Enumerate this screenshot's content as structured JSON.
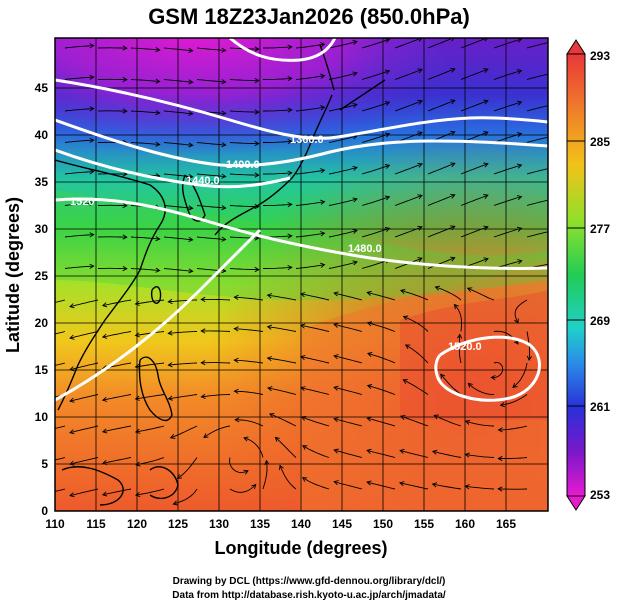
{
  "figure": {
    "title": "GSM 18Z23Jan2026 (850.0hPa)",
    "xlabel": "Longitude (degrees)",
    "ylabel": "Latitude  (degrees)",
    "credit_line1": "Drawing by DCL (https://www.gfd-dennou.org/library/dcl/)",
    "credit_line2": "Data from http://database.rish.kyoto-u.ac.jp/arch/jmadata/"
  },
  "map": {
    "lon_range": [
      110,
      170
    ],
    "lat_range": [
      0,
      50
    ],
    "x_ticks": [
      "110",
      "115",
      "120",
      "125",
      "130",
      "135",
      "140",
      "145",
      "150",
      "155",
      "160",
      "165"
    ],
    "y_ticks": [
      "0",
      "5",
      "10",
      "15",
      "20",
      "25",
      "30",
      "35",
      "40",
      "45"
    ],
    "grid": true,
    "field": "temperature (shaded, colour bar 253–293)",
    "contours_labels": [
      "1360.0",
      "1400.0",
      "1440.0",
      "1520",
      "1480.0",
      "1520.0"
    ]
  },
  "colorbar": {
    "ticks": [
      "293",
      "285",
      "277",
      "269",
      "261",
      "253"
    ],
    "min": 253,
    "max": 293
  }
}
